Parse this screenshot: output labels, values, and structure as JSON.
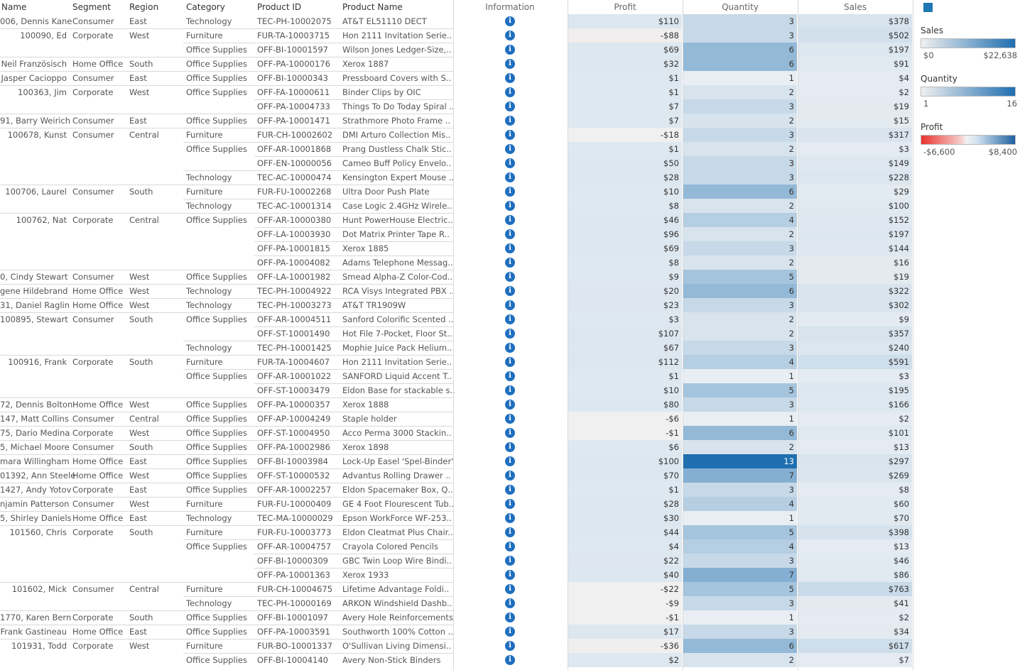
{
  "columns": {
    "name": "Name",
    "segment": "Segment",
    "region": "Region",
    "category": "Category",
    "product_id": "Product ID",
    "product_name": "Product Name",
    "information": "Information",
    "profit": "Profit",
    "quantity": "Quantity",
    "sales": "Sales"
  },
  "legend": {
    "sales": {
      "title": "Sales",
      "min": "$0",
      "max": "$22,638"
    },
    "quantity": {
      "title": "Quantity",
      "min": "1",
      "max": "16"
    },
    "profit": {
      "title": "Profit",
      "min": "-$6,600",
      "max": "$8,400"
    }
  },
  "colors": {
    "accent": "#1f77b4",
    "info_icon": "#1f6fbf"
  },
  "rows": [
    {
      "name": "006, Dennis Kane",
      "segment": "Consumer",
      "region": "East",
      "category": "Technology",
      "product_id": "TEC-PH-10002075",
      "product_name": "AT&T EL51110 DECT",
      "profit": "$110",
      "quantity": "3",
      "sales": "$378",
      "pv": 110,
      "qv": 3,
      "sv": 378
    },
    {
      "name": "100090, Ed",
      "segment": "Corporate",
      "region": "West",
      "category": "Furniture",
      "product_id": "FUR-TA-10003715",
      "product_name": "Hon 2111 Invitation Serie..",
      "profit": "-$88",
      "quantity": "3",
      "sales": "$502",
      "pv": -88,
      "qv": 3,
      "sv": 502
    },
    {
      "name": "",
      "segment": "",
      "region": "",
      "category": "Office Supplies",
      "product_id": "OFF-BI-10001597",
      "product_name": "Wilson Jones Ledger-Size,..",
      "profit": "$69",
      "quantity": "6",
      "sales": "$197",
      "pv": 69,
      "qv": 6,
      "sv": 197
    },
    {
      "name": "Neil Französisch",
      "segment": "Home Office",
      "region": "South",
      "category": "Office Supplies",
      "product_id": "OFF-PA-10000176",
      "product_name": "Xerox 1887",
      "profit": "$32",
      "quantity": "6",
      "sales": "$91",
      "pv": 32,
      "qv": 6,
      "sv": 91
    },
    {
      "name": "Jasper Cacioppo",
      "segment": "Consumer",
      "region": "East",
      "category": "Office Supplies",
      "product_id": "OFF-BI-10000343",
      "product_name": "Pressboard Covers with S..",
      "profit": "$1",
      "quantity": "1",
      "sales": "$4",
      "pv": 1,
      "qv": 1,
      "sv": 4
    },
    {
      "name": "100363, Jim",
      "segment": "Corporate",
      "region": "West",
      "category": "Office Supplies",
      "product_id": "OFF-FA-10000611",
      "product_name": "Binder Clips by OIC",
      "profit": "$1",
      "quantity": "2",
      "sales": "$2",
      "pv": 1,
      "qv": 2,
      "sv": 2
    },
    {
      "name": "",
      "segment": "",
      "region": "",
      "category": "",
      "product_id": "OFF-PA-10004733",
      "product_name": "Things To Do Today Spiral ..",
      "profit": "$7",
      "quantity": "3",
      "sales": "$19",
      "pv": 7,
      "qv": 3,
      "sv": 19
    },
    {
      "name": "91, Barry Weirich",
      "segment": "Consumer",
      "region": "East",
      "category": "Office Supplies",
      "product_id": "OFF-PA-10001471",
      "product_name": "Strathmore Photo Frame ..",
      "profit": "$7",
      "quantity": "2",
      "sales": "$15",
      "pv": 7,
      "qv": 2,
      "sv": 15
    },
    {
      "name": "100678, Kunst",
      "segment": "Consumer",
      "region": "Central",
      "category": "Furniture",
      "product_id": "FUR-CH-10002602",
      "product_name": "DMI Arturo Collection Mis..",
      "profit": "-$18",
      "quantity": "3",
      "sales": "$317",
      "pv": -18,
      "qv": 3,
      "sv": 317
    },
    {
      "name": "",
      "segment": "",
      "region": "",
      "category": "Office Supplies",
      "product_id": "OFF-AR-10001868",
      "product_name": "Prang Dustless Chalk Stic..",
      "profit": "$1",
      "quantity": "2",
      "sales": "$3",
      "pv": 1,
      "qv": 2,
      "sv": 3
    },
    {
      "name": "",
      "segment": "",
      "region": "",
      "category": "",
      "product_id": "OFF-EN-10000056",
      "product_name": "Cameo Buff Policy Envelo..",
      "profit": "$50",
      "quantity": "3",
      "sales": "$149",
      "pv": 50,
      "qv": 3,
      "sv": 149
    },
    {
      "name": "",
      "segment": "",
      "region": "",
      "category": "Technology",
      "product_id": "TEC-AC-10000474",
      "product_name": "Kensington Expert Mouse ..",
      "profit": "$28",
      "quantity": "3",
      "sales": "$228",
      "pv": 28,
      "qv": 3,
      "sv": 228
    },
    {
      "name": "100706, Laurel",
      "segment": "Consumer",
      "region": "South",
      "category": "Furniture",
      "product_id": "FUR-FU-10002268",
      "product_name": "Ultra Door Push Plate",
      "profit": "$10",
      "quantity": "6",
      "sales": "$29",
      "pv": 10,
      "qv": 6,
      "sv": 29
    },
    {
      "name": "",
      "segment": "",
      "region": "",
      "category": "Technology",
      "product_id": "TEC-AC-10001314",
      "product_name": "Case Logic 2.4GHz Wirele..",
      "profit": "$8",
      "quantity": "2",
      "sales": "$100",
      "pv": 8,
      "qv": 2,
      "sv": 100
    },
    {
      "name": "100762, Nat",
      "segment": "Corporate",
      "region": "Central",
      "category": "Office Supplies",
      "product_id": "OFF-AR-10000380",
      "product_name": "Hunt PowerHouse Electric..",
      "profit": "$46",
      "quantity": "4",
      "sales": "$152",
      "pv": 46,
      "qv": 4,
      "sv": 152
    },
    {
      "name": "",
      "segment": "",
      "region": "",
      "category": "",
      "product_id": "OFF-LA-10003930",
      "product_name": "Dot Matrix Printer Tape R..",
      "profit": "$96",
      "quantity": "2",
      "sales": "$197",
      "pv": 96,
      "qv": 2,
      "sv": 197
    },
    {
      "name": "",
      "segment": "",
      "region": "",
      "category": "",
      "product_id": "OFF-PA-10001815",
      "product_name": "Xerox 1885",
      "profit": "$69",
      "quantity": "3",
      "sales": "$144",
      "pv": 69,
      "qv": 3,
      "sv": 144
    },
    {
      "name": "",
      "segment": "",
      "region": "",
      "category": "",
      "product_id": "OFF-PA-10004082",
      "product_name": "Adams Telephone Messag..",
      "profit": "$8",
      "quantity": "2",
      "sales": "$16",
      "pv": 8,
      "qv": 2,
      "sv": 16
    },
    {
      "name": "0, Cindy Stewart",
      "segment": "Consumer",
      "region": "West",
      "category": "Office Supplies",
      "product_id": "OFF-LA-10001982",
      "product_name": "Smead Alpha-Z Color-Cod..",
      "profit": "$9",
      "quantity": "5",
      "sales": "$19",
      "pv": 9,
      "qv": 5,
      "sv": 19
    },
    {
      "name": "gene Hildebrand",
      "segment": "Home Office",
      "region": "West",
      "category": "Technology",
      "product_id": "TEC-PH-10004922",
      "product_name": "RCA Visys Integrated PBX ..",
      "profit": "$20",
      "quantity": "6",
      "sales": "$322",
      "pv": 20,
      "qv": 6,
      "sv": 322
    },
    {
      "name": "31, Daniel Raglin",
      "segment": "Home Office",
      "region": "West",
      "category": "Technology",
      "product_id": "TEC-PH-10003273",
      "product_name": "AT&T TR1909W",
      "profit": "$23",
      "quantity": "3",
      "sales": "$302",
      "pv": 23,
      "qv": 3,
      "sv": 302
    },
    {
      "name": "100895, Stewart",
      "segment": "Consumer",
      "region": "South",
      "category": "Office Supplies",
      "product_id": "OFF-AR-10004511",
      "product_name": "Sanford Colorific Scented ..",
      "profit": "$3",
      "quantity": "2",
      "sales": "$9",
      "pv": 3,
      "qv": 2,
      "sv": 9
    },
    {
      "name": "",
      "segment": "",
      "region": "",
      "category": "",
      "product_id": "OFF-ST-10001490",
      "product_name": "Hot File 7-Pocket, Floor St..",
      "profit": "$107",
      "quantity": "2",
      "sales": "$357",
      "pv": 107,
      "qv": 2,
      "sv": 357
    },
    {
      "name": "",
      "segment": "",
      "region": "",
      "category": "Technology",
      "product_id": "TEC-PH-10001425",
      "product_name": "Mophie Juice Pack Helium..",
      "profit": "$67",
      "quantity": "3",
      "sales": "$240",
      "pv": 67,
      "qv": 3,
      "sv": 240
    },
    {
      "name": "100916, Frank",
      "segment": "Corporate",
      "region": "South",
      "category": "Furniture",
      "product_id": "FUR-TA-10004607",
      "product_name": "Hon 2111 Invitation Serie..",
      "profit": "$112",
      "quantity": "4",
      "sales": "$591",
      "pv": 112,
      "qv": 4,
      "sv": 591
    },
    {
      "name": "",
      "segment": "",
      "region": "",
      "category": "Office Supplies",
      "product_id": "OFF-AR-10001022",
      "product_name": "SANFORD Liquid Accent T..",
      "profit": "$1",
      "quantity": "1",
      "sales": "$3",
      "pv": 1,
      "qv": 1,
      "sv": 3
    },
    {
      "name": "",
      "segment": "",
      "region": "",
      "category": "",
      "product_id": "OFF-ST-10003479",
      "product_name": "Eldon Base for stackable s..",
      "profit": "$10",
      "quantity": "5",
      "sales": "$195",
      "pv": 10,
      "qv": 5,
      "sv": 195
    },
    {
      "name": "72, Dennis Bolton",
      "segment": "Home Office",
      "region": "West",
      "category": "Office Supplies",
      "product_id": "OFF-PA-10000357",
      "product_name": "Xerox 1888",
      "profit": "$80",
      "quantity": "3",
      "sales": "$166",
      "pv": 80,
      "qv": 3,
      "sv": 166
    },
    {
      "name": "147, Matt Collins",
      "segment": "Consumer",
      "region": "Central",
      "category": "Office Supplies",
      "product_id": "OFF-AP-10004249",
      "product_name": "Staple holder",
      "profit": "-$6",
      "quantity": "1",
      "sales": "$2",
      "pv": -6,
      "qv": 1,
      "sv": 2
    },
    {
      "name": "75, Dario Medina",
      "segment": "Corporate",
      "region": "West",
      "category": "Office Supplies",
      "product_id": "OFF-ST-10004950",
      "product_name": "Acco Perma 3000 Stackin..",
      "profit": "-$1",
      "quantity": "6",
      "sales": "$101",
      "pv": -1,
      "qv": 6,
      "sv": 101
    },
    {
      "name": "5, Michael Moore",
      "segment": "Consumer",
      "region": "South",
      "category": "Office Supplies",
      "product_id": "OFF-PA-10002986",
      "product_name": "Xerox 1898",
      "profit": "$6",
      "quantity": "2",
      "sales": "$13",
      "pv": 6,
      "qv": 2,
      "sv": 13
    },
    {
      "name": "mara Willingham",
      "segment": "Home Office",
      "region": "East",
      "category": "Office Supplies",
      "product_id": "OFF-BI-10003984",
      "product_name": "Lock-Up Easel 'Spel-Binder'",
      "profit": "$100",
      "quantity": "13",
      "sales": "$297",
      "pv": 100,
      "qv": 13,
      "sv": 297
    },
    {
      "name": "01392, Ann Steele",
      "segment": "Home Office",
      "region": "West",
      "category": "Office Supplies",
      "product_id": "OFF-ST-10000532",
      "product_name": "Advantus Rolling Drawer ..",
      "profit": "$70",
      "quantity": "7",
      "sales": "$269",
      "pv": 70,
      "qv": 7,
      "sv": 269
    },
    {
      "name": "1427, Andy Yotov",
      "segment": "Corporate",
      "region": "East",
      "category": "Office Supplies",
      "product_id": "OFF-AR-10002257",
      "product_name": "Eldon Spacemaker Box, Q..",
      "profit": "$1",
      "quantity": "3",
      "sales": "$8",
      "pv": 1,
      "qv": 3,
      "sv": 8
    },
    {
      "name": "njamin Patterson",
      "segment": "Consumer",
      "region": "West",
      "category": "Furniture",
      "product_id": "FUR-FU-10000409",
      "product_name": "GE 4 Foot Flourescent Tub..",
      "profit": "$28",
      "quantity": "4",
      "sales": "$60",
      "pv": 28,
      "qv": 4,
      "sv": 60
    },
    {
      "name": "5, Shirley Daniels",
      "segment": "Home Office",
      "region": "East",
      "category": "Technology",
      "product_id": "TEC-MA-10000029",
      "product_name": "Epson WorkForce WF-253..",
      "profit": "$30",
      "quantity": "1",
      "sales": "$70",
      "pv": 30,
      "qv": 1,
      "sv": 70
    },
    {
      "name": "101560, Chris",
      "segment": "Corporate",
      "region": "South",
      "category": "Furniture",
      "product_id": "FUR-FU-10003773",
      "product_name": "Eldon Cleatmat Plus Chair..",
      "profit": "$44",
      "quantity": "5",
      "sales": "$398",
      "pv": 44,
      "qv": 5,
      "sv": 398
    },
    {
      "name": "",
      "segment": "",
      "region": "",
      "category": "Office Supplies",
      "product_id": "OFF-AR-10004757",
      "product_name": "Crayola Colored Pencils",
      "profit": "$4",
      "quantity": "4",
      "sales": "$13",
      "pv": 4,
      "qv": 4,
      "sv": 13
    },
    {
      "name": "",
      "segment": "",
      "region": "",
      "category": "",
      "product_id": "OFF-BI-10000309",
      "product_name": "GBC Twin Loop Wire Bindi..",
      "profit": "$22",
      "quantity": "3",
      "sales": "$46",
      "pv": 22,
      "qv": 3,
      "sv": 46
    },
    {
      "name": "",
      "segment": "",
      "region": "",
      "category": "",
      "product_id": "OFF-PA-10001363",
      "product_name": "Xerox 1933",
      "profit": "$40",
      "quantity": "7",
      "sales": "$86",
      "pv": 40,
      "qv": 7,
      "sv": 86
    },
    {
      "name": "101602, Mick",
      "segment": "Consumer",
      "region": "Central",
      "category": "Furniture",
      "product_id": "FUR-CH-10004675",
      "product_name": "Lifetime Advantage Foldi..",
      "profit": "-$22",
      "quantity": "5",
      "sales": "$763",
      "pv": -22,
      "qv": 5,
      "sv": 763
    },
    {
      "name": "",
      "segment": "",
      "region": "",
      "category": "Technology",
      "product_id": "TEC-PH-10000169",
      "product_name": "ARKON Windshield Dashb..",
      "profit": "-$9",
      "quantity": "3",
      "sales": "$41",
      "pv": -9,
      "qv": 3,
      "sv": 41
    },
    {
      "name": "1770, Karen Bern",
      "segment": "Corporate",
      "region": "South",
      "category": "Office Supplies",
      "product_id": "OFF-BI-10001097",
      "product_name": "Avery Hole Reinforcements",
      "profit": "-$1",
      "quantity": "1",
      "sales": "$2",
      "pv": -1,
      "qv": 1,
      "sv": 2
    },
    {
      "name": "Frank Gastineau",
      "segment": "Home Office",
      "region": "East",
      "category": "Office Supplies",
      "product_id": "OFF-PA-10003591",
      "product_name": "Southworth 100% Cotton ..",
      "profit": "$17",
      "quantity": "3",
      "sales": "$34",
      "pv": 17,
      "qv": 3,
      "sv": 34
    },
    {
      "name": "101931, Todd",
      "segment": "Corporate",
      "region": "West",
      "category": "Furniture",
      "product_id": "FUR-BO-10001337",
      "product_name": "O'Sullivan Living Dimensi..",
      "profit": "-$36",
      "quantity": "6",
      "sales": "$617",
      "pv": -36,
      "qv": 6,
      "sv": 617
    },
    {
      "name": "",
      "segment": "",
      "region": "",
      "category": "Office Supplies",
      "product_id": "OFF-BI-10004140",
      "product_name": "Avery Non-Stick Binders",
      "profit": "$2",
      "quantity": "2",
      "sales": "$7",
      "pv": 2,
      "qv": 2,
      "sv": 7
    }
  ]
}
